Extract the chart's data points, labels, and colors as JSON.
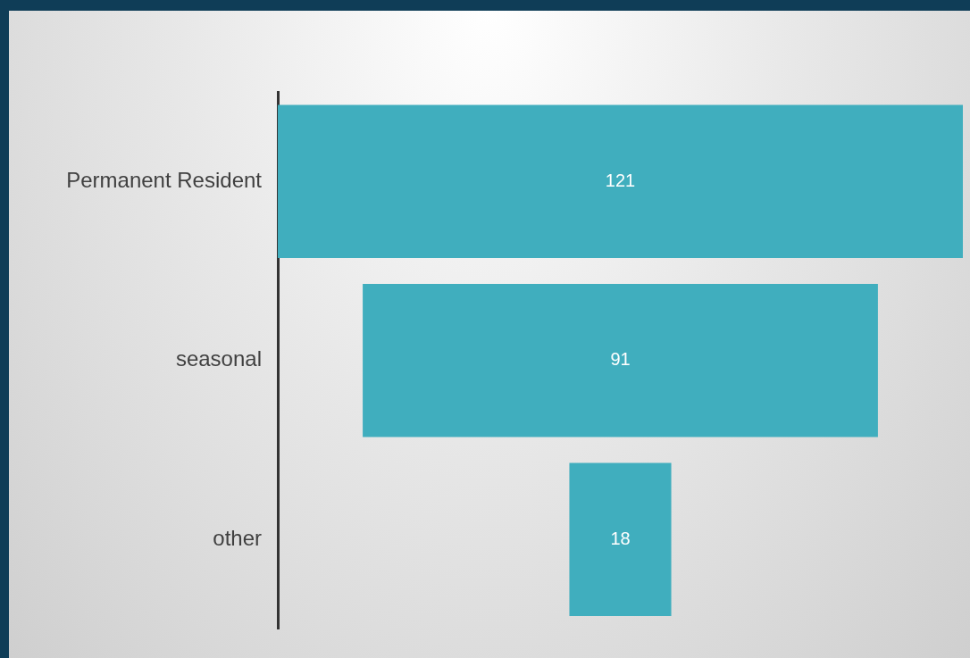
{
  "chart_data": {
    "type": "other",
    "categories": [
      "Permanent Resident",
      "seasonal",
      "other"
    ],
    "values": [
      121,
      91,
      18
    ],
    "color": "#40aebe",
    "data_labels": true
  }
}
